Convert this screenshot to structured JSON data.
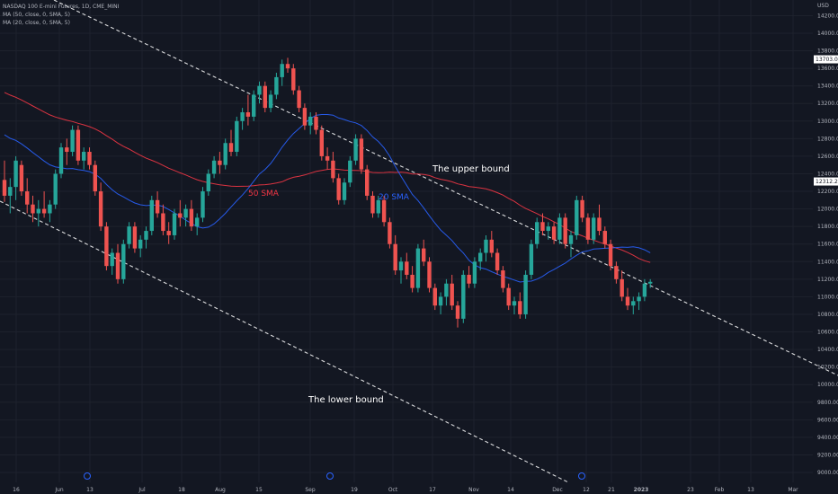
{
  "legend": {
    "symbol": "NASDAQ 100 E-mini Futures, 1D, CME_MINI",
    "ma50": "MA (50, close, 0, SMA, 5)",
    "ma20": "MA (20, close, 0, SMA, 5)"
  },
  "colors": {
    "background": "#131722",
    "up": "#26a69a",
    "down": "#ef5350",
    "ma50": "#f23645",
    "ma20": "#2962ff",
    "trendline": "#ffffff",
    "grid": "#1e222d",
    "axis_text": "#b2b5be"
  },
  "chart_data": {
    "type": "candlestick",
    "currency": "USD",
    "ylim": [
      8900,
      14300
    ],
    "y_ticks": [
      "9000.00",
      "9200.00",
      "9400.00",
      "9600.00",
      "9800.00",
      "10000.00",
      "10200.00",
      "10400.00",
      "10600.00",
      "10800.00",
      "11000.00",
      "11200.00",
      "11400.00",
      "11600.00",
      "11800.00",
      "12000.00",
      "12200.00",
      "12400.00",
      "12600.00",
      "12800.00",
      "13000.00",
      "13200.00",
      "13400.00",
      "13600.00",
      "13800.00",
      "14000.00",
      "14200.00"
    ],
    "x_ticks": [
      "16",
      "Jun",
      "13",
      "Jul",
      "18",
      "Aug",
      "15",
      "Sep",
      "19",
      "Oct",
      "17",
      "Nov",
      "14",
      "Dec",
      "12",
      "21",
      "2023",
      "23",
      "Feb",
      "13",
      "Mar"
    ],
    "price_tags": [
      {
        "label": "13703.00",
        "value": 13703,
        "style": "light"
      },
      {
        "label": "12312.25",
        "value": 12312.25,
        "style": "light"
      }
    ],
    "annotations": [
      {
        "text": "The upper bound"
      },
      {
        "text": "The lower bound"
      },
      {
        "text": "50 SMA",
        "series": "ma50"
      },
      {
        "text": "20 SMA",
        "series": "ma20"
      }
    ],
    "candles": [
      [
        12330,
        12550,
        12080,
        12150
      ],
      [
        12150,
        12350,
        11950,
        12250
      ],
      [
        12250,
        12600,
        12100,
        12550
      ],
      [
        12500,
        12550,
        12150,
        12200
      ],
      [
        12200,
        12350,
        11950,
        12050
      ],
      [
        12050,
        12150,
        11850,
        11950
      ],
      [
        11950,
        12100,
        11800,
        12000
      ],
      [
        12000,
        12200,
        11900,
        11950
      ],
      [
        11950,
        12100,
        11850,
        12050
      ],
      [
        12050,
        12450,
        12000,
        12400
      ],
      [
        12400,
        12750,
        12350,
        12700
      ],
      [
        12700,
        12800,
        12500,
        12650
      ],
      [
        12650,
        12950,
        12600,
        12900
      ],
      [
        12900,
        12950,
        12500,
        12550
      ],
      [
        12550,
        12700,
        12450,
        12650
      ],
      [
        12650,
        12700,
        12450,
        12500
      ],
      [
        12500,
        12550,
        12150,
        12200
      ],
      [
        12200,
        12300,
        11750,
        11800
      ],
      [
        11800,
        11850,
        11300,
        11350
      ],
      [
        11350,
        11550,
        11250,
        11500
      ],
      [
        11500,
        11600,
        11150,
        11200
      ],
      [
        11200,
        11650,
        11150,
        11600
      ],
      [
        11600,
        11850,
        11550,
        11800
      ],
      [
        11800,
        11850,
        11500,
        11550
      ],
      [
        11550,
        11700,
        11450,
        11650
      ],
      [
        11650,
        11800,
        11550,
        11750
      ],
      [
        11750,
        12150,
        11700,
        12100
      ],
      [
        12100,
        12200,
        11900,
        11950
      ],
      [
        11950,
        12050,
        11700,
        11750
      ],
      [
        11750,
        11850,
        11600,
        11700
      ],
      [
        11700,
        12000,
        11650,
        11950
      ],
      [
        11950,
        12100,
        11800,
        11900
      ],
      [
        11900,
        12050,
        11800,
        12000
      ],
      [
        12000,
        12100,
        11750,
        11800
      ],
      [
        11800,
        11950,
        11700,
        11900
      ],
      [
        11900,
        12250,
        11850,
        12200
      ],
      [
        12200,
        12450,
        12150,
        12400
      ],
      [
        12400,
        12600,
        12350,
        12550
      ],
      [
        12550,
        12650,
        12400,
        12500
      ],
      [
        12500,
        12800,
        12450,
        12750
      ],
      [
        12750,
        12900,
        12600,
        12650
      ],
      [
        12650,
        13050,
        12600,
        13000
      ],
      [
        13000,
        13150,
        12900,
        13100
      ],
      [
        13100,
        13300,
        12950,
        13050
      ],
      [
        13050,
        13350,
        13000,
        13300
      ],
      [
        13300,
        13450,
        13200,
        13400
      ],
      [
        13400,
        13450,
        13100,
        13150
      ],
      [
        13150,
        13350,
        13100,
        13300
      ],
      [
        13300,
        13550,
        13250,
        13500
      ],
      [
        13500,
        13700,
        13400,
        13650
      ],
      [
        13650,
        13720,
        13550,
        13600
      ],
      [
        13600,
        13650,
        13300,
        13350
      ],
      [
        13350,
        13400,
        13100,
        13150
      ],
      [
        13150,
        13200,
        12900,
        12950
      ],
      [
        12950,
        13100,
        12850,
        13050
      ],
      [
        13050,
        13100,
        12850,
        12900
      ],
      [
        12900,
        12950,
        12550,
        12600
      ],
      [
        12600,
        12700,
        12450,
        12550
      ],
      [
        12550,
        12650,
        12300,
        12350
      ],
      [
        12350,
        12400,
        12050,
        12100
      ],
      [
        12100,
        12350,
        12050,
        12300
      ],
      [
        12300,
        12600,
        12250,
        12550
      ],
      [
        12550,
        12850,
        12500,
        12800
      ],
      [
        12800,
        12850,
        12400,
        12450
      ],
      [
        12450,
        12500,
        12100,
        12150
      ],
      [
        12150,
        12200,
        11900,
        11950
      ],
      [
        11950,
        12150,
        11900,
        12100
      ],
      [
        12100,
        12150,
        11800,
        11850
      ],
      [
        11850,
        11900,
        11550,
        11600
      ],
      [
        11600,
        11700,
        11250,
        11300
      ],
      [
        11300,
        11450,
        11150,
        11400
      ],
      [
        11400,
        11500,
        11200,
        11250
      ],
      [
        11250,
        11350,
        11050,
        11100
      ],
      [
        11100,
        11600,
        11050,
        11550
      ],
      [
        11550,
        11650,
        11350,
        11400
      ],
      [
        11400,
        11450,
        11050,
        11100
      ],
      [
        11100,
        11150,
        10850,
        10900
      ],
      [
        10900,
        11050,
        10800,
        11000
      ],
      [
        11000,
        11200,
        10900,
        11150
      ],
      [
        11150,
        11250,
        10850,
        10900
      ],
      [
        10900,
        10950,
        10650,
        10750
      ],
      [
        10750,
        11300,
        10700,
        11250
      ],
      [
        11250,
        11350,
        11100,
        11150
      ],
      [
        11150,
        11450,
        11100,
        11400
      ],
      [
        11400,
        11550,
        11300,
        11500
      ],
      [
        11500,
        11700,
        11400,
        11650
      ],
      [
        11650,
        11750,
        11450,
        11500
      ],
      [
        11500,
        11550,
        11250,
        11300
      ],
      [
        11300,
        11350,
        11050,
        11100
      ],
      [
        11100,
        11150,
        10850,
        10900
      ],
      [
        10900,
        11000,
        10800,
        10950
      ],
      [
        10950,
        11050,
        10750,
        10800
      ],
      [
        10800,
        11300,
        10750,
        11250
      ],
      [
        11250,
        11650,
        11200,
        11600
      ],
      [
        11600,
        11900,
        11550,
        11850
      ],
      [
        11850,
        11950,
        11700,
        11750
      ],
      [
        11750,
        11850,
        11650,
        11800
      ],
      [
        11800,
        11850,
        11600,
        11650
      ],
      [
        11650,
        11950,
        11600,
        11900
      ],
      [
        11900,
        11950,
        11550,
        11600
      ],
      [
        11600,
        11750,
        11450,
        11700
      ],
      [
        11700,
        12150,
        11650,
        12100
      ],
      [
        12100,
        12150,
        11850,
        11900
      ],
      [
        11900,
        11950,
        11600,
        11650
      ],
      [
        11650,
        11950,
        11600,
        11900
      ],
      [
        11900,
        12050,
        11700,
        11750
      ],
      [
        11750,
        11800,
        11550,
        11600
      ],
      [
        11600,
        11650,
        11300,
        11350
      ],
      [
        11350,
        11400,
        11150,
        11200
      ],
      [
        11200,
        11300,
        10950,
        11000
      ],
      [
        11000,
        11100,
        10850,
        10900
      ],
      [
        10900,
        11000,
        10800,
        10950
      ],
      [
        10950,
        11050,
        10850,
        11000
      ],
      [
        11000,
        11200,
        10950,
        11150
      ],
      [
        11150,
        11200,
        11100,
        11170
      ]
    ]
  }
}
